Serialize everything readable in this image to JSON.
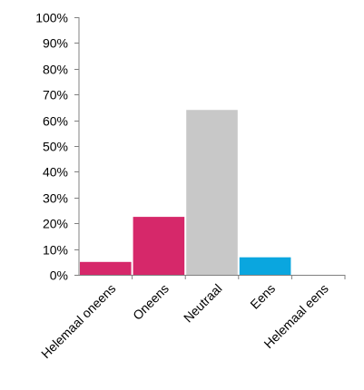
{
  "chart_data": {
    "type": "bar",
    "title": "",
    "xlabel": "",
    "ylabel": "",
    "categories": [
      "Helemaal oneens",
      "Oneens",
      "Neutraal",
      "Eens",
      "Helemaal eens"
    ],
    "values": [
      5,
      22.5,
      64,
      6.8,
      0
    ],
    "value_unit": "%",
    "ylim": [
      0,
      100
    ],
    "yticks": [
      0,
      10,
      20,
      30,
      40,
      50,
      60,
      70,
      80,
      90,
      100
    ],
    "ytick_labels": [
      "0%",
      "10%",
      "20%",
      "30%",
      "40%",
      "50%",
      "60%",
      "70%",
      "80%",
      "90%",
      "100%"
    ],
    "bar_colors": [
      "#d6286a",
      "#d6286a",
      "#c8c8c8",
      "#0aa6df",
      "#d6286a"
    ],
    "grid": false,
    "legend": "none"
  }
}
